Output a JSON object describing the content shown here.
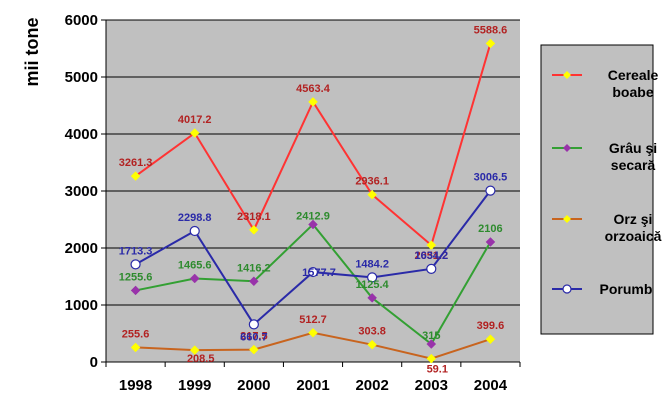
{
  "chart_data": {
    "type": "line",
    "ylabel": "mii tone",
    "ylim": [
      0,
      6000
    ],
    "yticks": [
      "0",
      "1000",
      "2000",
      "3000",
      "4000",
      "5000",
      "6000"
    ],
    "categories": [
      "1998",
      "1999",
      "2000",
      "2001",
      "2002",
      "2003",
      "2004"
    ],
    "grid": "horizontal",
    "plot_background": "#c0c0c0",
    "legend_position": "right",
    "series": [
      {
        "name_lines": [
          "Cereale",
          "boabe"
        ],
        "values": [
          3261.3,
          4017.2,
          2318.1,
          4563.4,
          2936.1,
          2051.2,
          5588.6
        ],
        "labels": [
          "3261.3",
          "4017.2",
          "2318.1",
          "4563.4",
          "2936.1",
          "2051.2",
          "5588.6"
        ],
        "line_color": "#ff3333",
        "marker_color": "#ffff00",
        "marker": "diamond",
        "label_color": "#b22222"
      },
      {
        "name_lines": [
          "Grâu şi",
          "secară"
        ],
        "values": [
          1255.6,
          1465.6,
          1416.2,
          2412.9,
          1125.4,
          315,
          2106
        ],
        "labels": [
          "1255.6",
          "1465.6",
          "1416.2",
          "2412.9",
          "1125.4",
          "315",
          "2106"
        ],
        "line_color": "#33a033",
        "marker_color": "#9933aa",
        "marker": "diamond",
        "label_color": "#2e8b2e"
      },
      {
        "name_lines": [
          "Orz şi",
          "orzoaică"
        ],
        "values": [
          255.6,
          208.5,
          217.5,
          512.7,
          303.8,
          59.1,
          399.6
        ],
        "labels": [
          "255.6",
          "208.5",
          "217.5",
          "512.7",
          "303.8",
          "59.1",
          "399.6"
        ],
        "line_color": "#c8641e",
        "marker_color": "#ffff00",
        "marker": "diamond",
        "label_color": "#b22222"
      },
      {
        "name_lines": [
          "Porumb"
        ],
        "values": [
          1713.3,
          2298.8,
          660.7,
          1577.7,
          1484.2,
          1634.2,
          3006.5
        ],
        "labels": [
          "1713.3",
          "2298.8",
          "660.7",
          "1577.7",
          "1484.2",
          "1634.2",
          "3006.5"
        ],
        "line_color": "#2a2aa8",
        "marker_color": "#ffffff",
        "marker": "circle",
        "label_color": "#2a2aa8"
      }
    ]
  }
}
